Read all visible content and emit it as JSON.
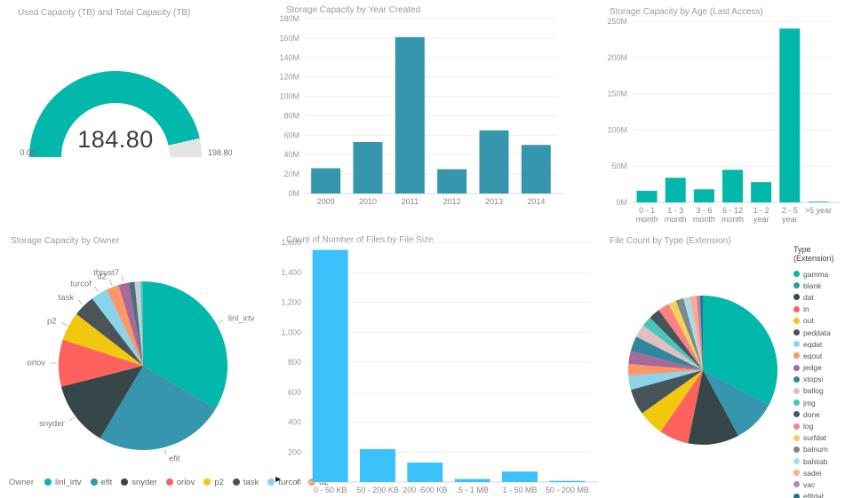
{
  "background": "#FFFFFF",
  "icons": {
    "scroll_right": "▶"
  },
  "chart_data": [
    {
      "type": "gauge",
      "title": "Used Capacity (TB) and Total Capacity (TB)",
      "value": 184.8,
      "min": 0.0,
      "max": 198.8,
      "display": {
        "value": "184.80",
        "min": "0.00",
        "max": "198.80"
      },
      "color": "#01B8AA",
      "rest_color": "#E4E4E4"
    },
    {
      "type": "bar",
      "title": "Storage Capacity by Year Created",
      "categories": [
        "2009",
        "2010",
        "2011",
        "2012",
        "2013",
        "2014"
      ],
      "values": [
        26,
        53,
        161,
        25,
        65,
        50
      ],
      "unit": "M",
      "ylim": [
        0,
        180
      ],
      "yticks": [
        "0M",
        "20M",
        "40M",
        "60M",
        "80M",
        "100M",
        "120M",
        "140M",
        "160M",
        "180M"
      ],
      "color": "#3596AE",
      "grid": true,
      "xlabel": "",
      "ylabel": ""
    },
    {
      "type": "bar",
      "title": "Storage Capacity by Age (Last Access)",
      "categories": [
        "0 - 1\nmonth",
        "1 - 3\nmonth",
        "3 - 6\nmonth",
        "6 - 12\nmonth",
        "1 - 2\nyear",
        "2 - 5\nyear",
        ">5 year"
      ],
      "values": [
        16,
        34,
        18,
        45,
        28,
        240,
        1
      ],
      "unit": "M",
      "ylim": [
        0,
        250
      ],
      "yticks": [
        "0M",
        "50M",
        "100M",
        "150M",
        "200M",
        "250M"
      ],
      "color": "#01B8AA",
      "grid": true,
      "xlabel": "",
      "ylabel": ""
    },
    {
      "type": "pie",
      "title": "Storage Capacity by Owner",
      "slices": [
        {
          "label": "linl_irtv",
          "value": 33.5,
          "color": "#01B8AA"
        },
        {
          "label": "efit",
          "value": 25.0,
          "color": "#3596AE"
        },
        {
          "label": "snyder",
          "value": 12.5,
          "color": "#374649"
        },
        {
          "label": "orlov",
          "value": 9.0,
          "color": "#FD625E"
        },
        {
          "label": "p2",
          "value": 5.5,
          "color": "#F2C80F"
        },
        {
          "label": "task",
          "value": 4.2,
          "color": "#4A5459"
        },
        {
          "label": "turcof",
          "value": 3.2,
          "color": "#8AD4EB"
        },
        {
          "label": "d2",
          "value": 2.4,
          "color": "#FE9666"
        },
        {
          "label": "thrust7",
          "value": 2.0,
          "color": "#A66999"
        },
        {
          "label": "",
          "value": 1.1,
          "color": "#4A6F7D"
        },
        {
          "label": "",
          "value": 1.1,
          "color": "#C7CDD1"
        },
        {
          "label": "",
          "value": 0.5,
          "color": "#4AC5BB"
        }
      ],
      "legend": {
        "title": "Owner",
        "position": "bottom",
        "items": [
          {
            "label": "linl_irtv",
            "color": "#01B8AA"
          },
          {
            "label": "efit",
            "color": "#3596AE"
          },
          {
            "label": "snyder",
            "color": "#374649"
          },
          {
            "label": "orlov",
            "color": "#FD625E"
          },
          {
            "label": "p2",
            "color": "#F2C80F"
          },
          {
            "label": "task",
            "color": "#4A5459"
          },
          {
            "label": "turcof",
            "color": "#8AD4EB"
          },
          {
            "label": "d2",
            "color": "#FE9666"
          }
        ]
      }
    },
    {
      "type": "bar",
      "title": "Count of Number of Files by File Size",
      "categories": [
        "0 - 50 KB",
        "50 - 200 KB",
        "200 -500 KB",
        ".5 - 1 MB",
        "1 - 50 MB",
        "50 - 200 MB"
      ],
      "values": [
        1550,
        220,
        130,
        20,
        70,
        8
      ],
      "unit": "",
      "ylim": [
        0,
        1600
      ],
      "yticks": [
        "0",
        "200",
        "400",
        "600",
        "800",
        "1,000",
        "1,200",
        "1,400",
        "1,600"
      ],
      "color": "#3BC2FB",
      "grid": true,
      "xlabel": "",
      "ylabel": ""
    },
    {
      "type": "pie",
      "title": "File Count by Type (Extension)",
      "slices": [
        {
          "label": "gamma",
          "value": 32.8,
          "color": "#01B8AA"
        },
        {
          "label": "blank",
          "value": 9.4,
          "color": "#3596AE"
        },
        {
          "label": "dat",
          "value": 11.1,
          "color": "#374649"
        },
        {
          "label": "in",
          "value": 6.4,
          "color": "#FD625E"
        },
        {
          "label": "out",
          "value": 5.6,
          "color": "#F2C80F"
        },
        {
          "label": "peddata",
          "value": 5.6,
          "color": "#475459"
        },
        {
          "label": "eqdat",
          "value": 3.1,
          "color": "#8AD4EB"
        },
        {
          "label": "eqout",
          "value": 2.5,
          "color": "#FE9666"
        },
        {
          "label": "jedge",
          "value": 2.8,
          "color": "#A66999"
        },
        {
          "label": "xtopsi",
          "value": 3.3,
          "color": "#31869B"
        },
        {
          "label": "ballog",
          "value": 2.8,
          "color": "#DFBFBF"
        },
        {
          "label": "jmg",
          "value": 2.2,
          "color": "#4AC5BB"
        },
        {
          "label": "done",
          "value": 2.5,
          "color": "#47555B"
        },
        {
          "label": "log",
          "value": 2.5,
          "color": "#FB8281"
        },
        {
          "label": "surfdat",
          "value": 1.7,
          "color": "#F4D25A"
        },
        {
          "label": "balnum",
          "value": 1.7,
          "color": "#7F898A"
        },
        {
          "label": "balstab",
          "value": 1.4,
          "color": "#A4DDEE"
        },
        {
          "label": "sadei",
          "value": 1.4,
          "color": "#FDAB89"
        },
        {
          "label": "vac",
          "value": 0.8,
          "color": "#B687AC"
        },
        {
          "label": "efitdat",
          "value": 0.6,
          "color": "#28738A"
        }
      ],
      "legend": {
        "title": "Type (Extension)",
        "position": "right",
        "items": [
          {
            "label": "gamma",
            "color": "#01B8AA"
          },
          {
            "label": "blank",
            "color": "#3596AE"
          },
          {
            "label": "dat",
            "color": "#374649"
          },
          {
            "label": "in",
            "color": "#FD625E"
          },
          {
            "label": "out",
            "color": "#F2C80F"
          },
          {
            "label": "peddata",
            "color": "#475459"
          },
          {
            "label": "eqdat",
            "color": "#8AD4EB"
          },
          {
            "label": "eqout",
            "color": "#FE9666"
          },
          {
            "label": "jedge",
            "color": "#A66999"
          },
          {
            "label": "xtopsi",
            "color": "#31869B"
          },
          {
            "label": "ballog",
            "color": "#DFBFBF"
          },
          {
            "label": "jmg",
            "color": "#4AC5BB"
          },
          {
            "label": "done",
            "color": "#47555B"
          },
          {
            "label": "log",
            "color": "#FB8281"
          },
          {
            "label": "surfdat",
            "color": "#F4D25A"
          },
          {
            "label": "balnum",
            "color": "#7F898A"
          },
          {
            "label": "balstab",
            "color": "#A4DDEE"
          },
          {
            "label": "sadei",
            "color": "#FDAB89"
          },
          {
            "label": "vac",
            "color": "#B687AC"
          },
          {
            "label": "efitdat",
            "color": "#28738A"
          }
        ]
      }
    }
  ]
}
